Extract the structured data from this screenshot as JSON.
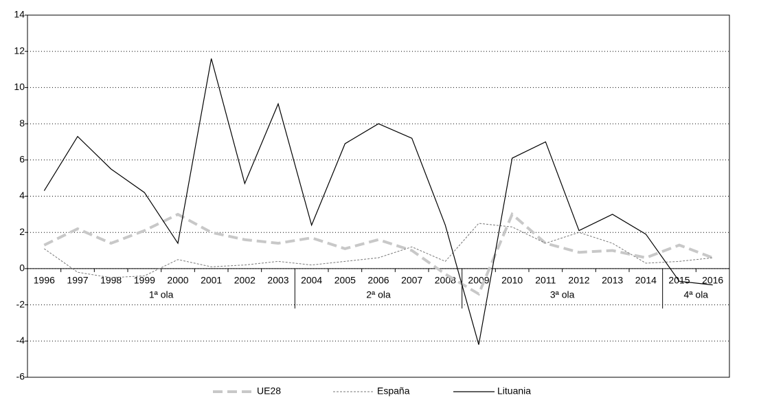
{
  "chart_data": {
    "type": "line",
    "categories": [
      "1996",
      "1997",
      "1998",
      "1999",
      "2000",
      "2001",
      "2002",
      "2003",
      "2004",
      "2005",
      "2006",
      "2007",
      "2008",
      "2009",
      "2010",
      "2011",
      "2012",
      "2013",
      "2014",
      "2015",
      "2016"
    ],
    "series": [
      {
        "name": "UE28",
        "color": "#c8c8c8",
        "values": [
          1.3,
          2.2,
          1.4,
          2.1,
          3.0,
          2.0,
          1.6,
          1.4,
          1.7,
          1.1,
          1.6,
          1.0,
          -0.3,
          -1.4,
          3.0,
          1.4,
          0.9,
          1.0,
          0.6,
          1.3,
          0.6
        ]
      },
      {
        "name": "España",
        "color": "#777777",
        "values": [
          1.1,
          -0.2,
          -0.5,
          -0.4,
          0.5,
          0.1,
          0.2,
          0.4,
          0.2,
          0.4,
          0.6,
          1.2,
          0.4,
          2.5,
          2.3,
          1.4,
          2.0,
          1.4,
          0.3,
          0.4,
          0.6
        ]
      },
      {
        "name": "Lituania",
        "color": "#000000",
        "values": [
          4.3,
          7.3,
          5.5,
          4.2,
          1.4,
          11.6,
          4.7,
          9.1,
          2.4,
          6.9,
          8.0,
          7.2,
          2.4,
          -4.2,
          6.1,
          7.0,
          2.1,
          3.0,
          1.9,
          -0.7,
          -0.9
        ]
      }
    ],
    "waves": [
      {
        "label": "1ª ola",
        "start": "1996",
        "end": "2003"
      },
      {
        "label": "2ª ola",
        "start": "2004",
        "end": "2008"
      },
      {
        "label": "3ª ola",
        "start": "2009",
        "end": "2014"
      },
      {
        "label": "4ª ola",
        "start": "2015",
        "end": "2016"
      }
    ],
    "ylim": [
      -6,
      14
    ],
    "yticks": [
      -6,
      -4,
      -2,
      0,
      2,
      4,
      6,
      8,
      10,
      12,
      14
    ],
    "grid": true,
    "legend": "bottom"
  }
}
